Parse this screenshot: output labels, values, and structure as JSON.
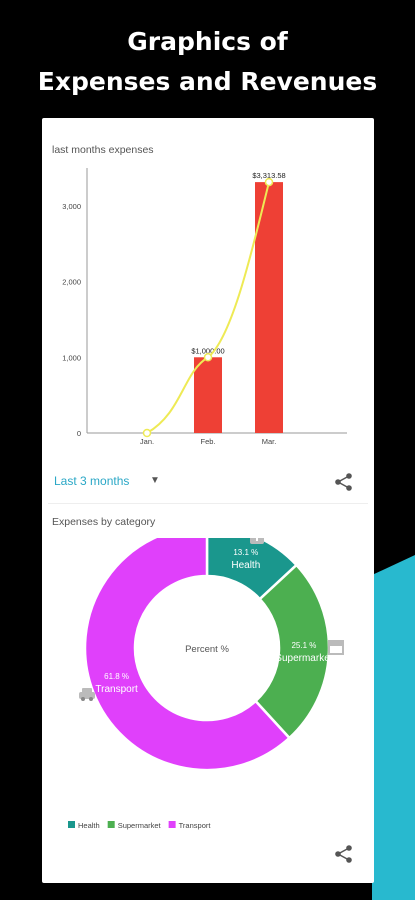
{
  "headline": {
    "line1": "Graphics of",
    "line2": "Expenses and Revenues"
  },
  "colors": {
    "background": "#000000",
    "accent_teal": "#28b9cf",
    "bar": "#ee4035",
    "trend_line": "#eeea55",
    "health": "#1a978d",
    "supermarket": "#4caf50",
    "transport": "#e040fb"
  },
  "expenses_chart": {
    "title": "last months expenses",
    "period_label": "Last 3 months",
    "dropdown_icon": "triangle-down-icon",
    "share_icon": "share-icon"
  },
  "category_chart": {
    "title": "Expenses by category",
    "share_icon": "share-icon"
  },
  "chart_data": [
    {
      "type": "bar",
      "title": "last months expenses",
      "categories": [
        "Jan.",
        "Feb.",
        "Mar."
      ],
      "values": [
        0,
        1000.0,
        3313.58
      ],
      "value_labels": [
        "",
        "$1,000.00",
        "$3,313.58"
      ],
      "trend_line": true,
      "ylim": [
        0,
        3500
      ],
      "yticks": [
        0,
        1000,
        2000,
        3000
      ],
      "ytick_labels": [
        "0",
        "1,000",
        "2,000",
        "3,000"
      ],
      "grid": false
    },
    {
      "type": "pie",
      "title": "Expenses by category",
      "center_label": "Percent %",
      "slices": [
        {
          "name": "Health",
          "value": 13.1,
          "pct_label": "13.1 %",
          "label": "Health",
          "icon": "plus-box-icon"
        },
        {
          "name": "Supermarket",
          "value": 25.1,
          "pct_label": "25.1 %",
          "label": "Supermarket",
          "icon": "store-icon"
        },
        {
          "name": "Transport",
          "value": 61.8,
          "pct_label": "61.8 %",
          "label": "Transport",
          "icon": "car-icon"
        }
      ],
      "legend": [
        "Health",
        "Supermarket",
        "Transport"
      ],
      "legend_position": "bottom-left"
    }
  ]
}
